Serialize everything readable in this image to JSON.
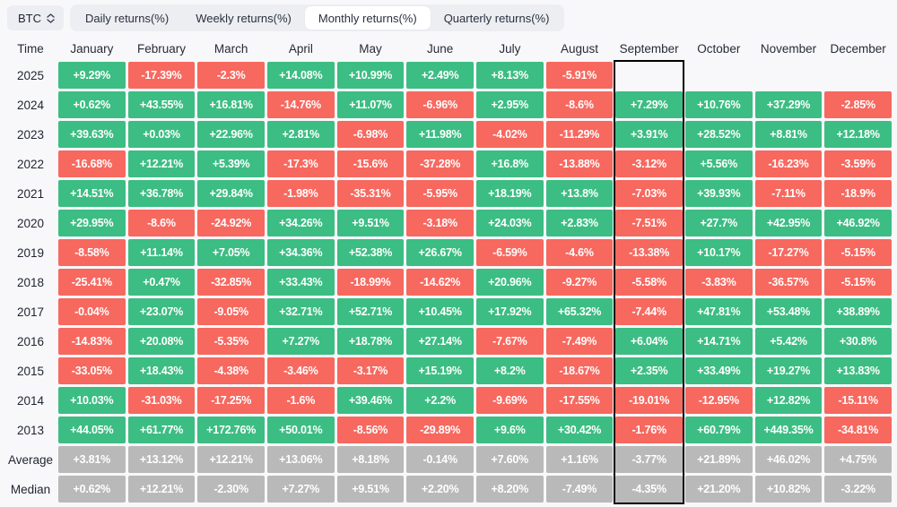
{
  "colors": {
    "positive": "#3cbd83",
    "negative": "#f7685f",
    "neutral": "#b9b9b9",
    "highlight_border": "#000000",
    "tab_bar_bg": "#eceef2",
    "active_tab_bg": "#ffffff",
    "page_bg": "#f8f8fa"
  },
  "toolbar": {
    "symbol_selector": {
      "label": "BTC",
      "icon": "updown-chevron-icon"
    },
    "tabs": [
      {
        "label": "Daily returns(%)",
        "active": false
      },
      {
        "label": "Weekly returns(%)",
        "active": false
      },
      {
        "label": "Monthly returns(%)",
        "active": true
      },
      {
        "label": "Quarterly returns(%)",
        "active": false
      }
    ]
  },
  "table": {
    "time_column_header": "Time",
    "month_columns": [
      "January",
      "February",
      "March",
      "April",
      "May",
      "June",
      "July",
      "August",
      "September",
      "October",
      "November",
      "December"
    ],
    "highlighted_column": "September",
    "rows": [
      {
        "label": "2025",
        "type": "year",
        "values": [
          "+9.29%",
          "-17.39%",
          "-2.3%",
          "+14.08%",
          "+10.99%",
          "+2.49%",
          "+8.13%",
          "-5.91%",
          null,
          null,
          null,
          null
        ]
      },
      {
        "label": "2024",
        "type": "year",
        "values": [
          "+0.62%",
          "+43.55%",
          "+16.81%",
          "-14.76%",
          "+11.07%",
          "-6.96%",
          "+2.95%",
          "-8.6%",
          "+7.29%",
          "+10.76%",
          "+37.29%",
          "-2.85%"
        ]
      },
      {
        "label": "2023",
        "type": "year",
        "values": [
          "+39.63%",
          "+0.03%",
          "+22.96%",
          "+2.81%",
          "-6.98%",
          "+11.98%",
          "-4.02%",
          "-11.29%",
          "+3.91%",
          "+28.52%",
          "+8.81%",
          "+12.18%"
        ]
      },
      {
        "label": "2022",
        "type": "year",
        "values": [
          "-16.68%",
          "+12.21%",
          "+5.39%",
          "-17.3%",
          "-15.6%",
          "-37.28%",
          "+16.8%",
          "-13.88%",
          "-3.12%",
          "+5.56%",
          "-16.23%",
          "-3.59%"
        ]
      },
      {
        "label": "2021",
        "type": "year",
        "values": [
          "+14.51%",
          "+36.78%",
          "+29.84%",
          "-1.98%",
          "-35.31%",
          "-5.95%",
          "+18.19%",
          "+13.8%",
          "-7.03%",
          "+39.93%",
          "-7.11%",
          "-18.9%"
        ]
      },
      {
        "label": "2020",
        "type": "year",
        "values": [
          "+29.95%",
          "-8.6%",
          "-24.92%",
          "+34.26%",
          "+9.51%",
          "-3.18%",
          "+24.03%",
          "+2.83%",
          "-7.51%",
          "+27.7%",
          "+42.95%",
          "+46.92%"
        ]
      },
      {
        "label": "2019",
        "type": "year",
        "values": [
          "-8.58%",
          "+11.14%",
          "+7.05%",
          "+34.36%",
          "+52.38%",
          "+26.67%",
          "-6.59%",
          "-4.6%",
          "-13.38%",
          "+10.17%",
          "-17.27%",
          "-5.15%"
        ]
      },
      {
        "label": "2018",
        "type": "year",
        "values": [
          "-25.41%",
          "+0.47%",
          "-32.85%",
          "+33.43%",
          "-18.99%",
          "-14.62%",
          "+20.96%",
          "-9.27%",
          "-5.58%",
          "-3.83%",
          "-36.57%",
          "-5.15%"
        ]
      },
      {
        "label": "2017",
        "type": "year",
        "values": [
          "-0.04%",
          "+23.07%",
          "-9.05%",
          "+32.71%",
          "+52.71%",
          "+10.45%",
          "+17.92%",
          "+65.32%",
          "-7.44%",
          "+47.81%",
          "+53.48%",
          "+38.89%"
        ]
      },
      {
        "label": "2016",
        "type": "year",
        "values": [
          "-14.83%",
          "+20.08%",
          "-5.35%",
          "+7.27%",
          "+18.78%",
          "+27.14%",
          "-7.67%",
          "-7.49%",
          "+6.04%",
          "+14.71%",
          "+5.42%",
          "+30.8%"
        ]
      },
      {
        "label": "2015",
        "type": "year",
        "values": [
          "-33.05%",
          "+18.43%",
          "-4.38%",
          "-3.46%",
          "-3.17%",
          "+15.19%",
          "+8.2%",
          "-18.67%",
          "+2.35%",
          "+33.49%",
          "+19.27%",
          "+13.83%"
        ]
      },
      {
        "label": "2014",
        "type": "year",
        "values": [
          "+10.03%",
          "-31.03%",
          "-17.25%",
          "-1.6%",
          "+39.46%",
          "+2.2%",
          "-9.69%",
          "-17.55%",
          "-19.01%",
          "-12.95%",
          "+12.82%",
          "-15.11%"
        ]
      },
      {
        "label": "2013",
        "type": "year",
        "values": [
          "+44.05%",
          "+61.77%",
          "+172.76%",
          "+50.01%",
          "-8.56%",
          "-29.89%",
          "+9.6%",
          "+30.42%",
          "-1.76%",
          "+60.79%",
          "+449.35%",
          "-34.81%"
        ]
      },
      {
        "label": "Average",
        "type": "summary",
        "values": [
          "+3.81%",
          "+13.12%",
          "+12.21%",
          "+13.06%",
          "+8.18%",
          "-0.14%",
          "+7.60%",
          "+1.16%",
          "-3.77%",
          "+21.89%",
          "+46.02%",
          "+4.75%"
        ]
      },
      {
        "label": "Median",
        "type": "summary",
        "values": [
          "+0.62%",
          "+12.21%",
          "-2.30%",
          "+7.27%",
          "+9.51%",
          "+2.20%",
          "+8.20%",
          "-7.49%",
          "-4.35%",
          "+21.20%",
          "+10.82%",
          "-3.22%"
        ]
      }
    ]
  }
}
